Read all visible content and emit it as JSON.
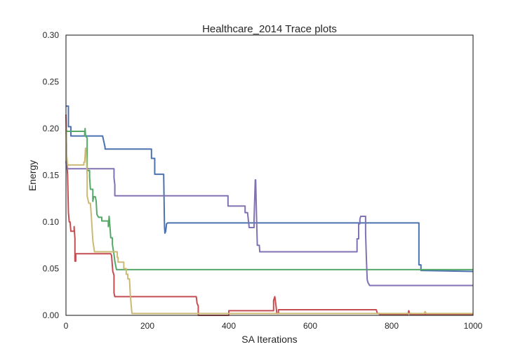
{
  "chart_data": {
    "type": "line",
    "title": "Healthcare_2014 Trace plots",
    "xlabel": "SA Iterations",
    "ylabel": "Energy",
    "xlim": [
      0,
      1000
    ],
    "ylim": [
      0,
      0.3
    ],
    "xticks": [
      "0",
      "200",
      "400",
      "600",
      "800",
      "1000"
    ],
    "xtick_values": [
      0,
      200,
      400,
      600,
      800,
      1000
    ],
    "yticks": [
      "0.00",
      "0.05",
      "0.10",
      "0.15",
      "0.20",
      "0.25",
      "0.30"
    ],
    "ytick_values": [
      0,
      0.05,
      0.1,
      0.15,
      0.2,
      0.25,
      0.3
    ],
    "grid": false,
    "legend": "none",
    "series": [
      {
        "color": "#4c72b0",
        "points": [
          [
            0,
            0.224
          ],
          [
            6,
            0.224
          ],
          [
            6,
            0.202
          ],
          [
            12,
            0.202
          ],
          [
            12,
            0.192
          ],
          [
            90,
            0.192
          ],
          [
            93,
            0.186
          ],
          [
            96,
            0.18
          ],
          [
            96,
            0.178
          ],
          [
            210,
            0.178
          ],
          [
            210,
            0.168
          ],
          [
            218,
            0.168
          ],
          [
            218,
            0.151
          ],
          [
            240,
            0.151
          ],
          [
            242,
            0.095
          ],
          [
            243,
            0.088
          ],
          [
            245,
            0.09
          ],
          [
            247,
            0.098
          ],
          [
            250,
            0.099
          ],
          [
            867,
            0.099
          ],
          [
            867,
            0.054
          ],
          [
            872,
            0.054
          ],
          [
            872,
            0.048
          ],
          [
            1000,
            0.047
          ]
        ]
      },
      {
        "color": "#55a868",
        "points": [
          [
            0,
            0.2
          ],
          [
            2,
            0.197
          ],
          [
            46,
            0.197
          ],
          [
            46,
            0.192
          ],
          [
            47,
            0.2
          ],
          [
            48,
            0.192
          ],
          [
            52,
            0.19
          ],
          [
            52,
            0.155
          ],
          [
            58,
            0.155
          ],
          [
            58,
            0.148
          ],
          [
            60,
            0.135
          ],
          [
            66,
            0.135
          ],
          [
            66,
            0.122
          ],
          [
            68,
            0.127
          ],
          [
            72,
            0.127
          ],
          [
            74,
            0.123
          ],
          [
            76,
            0.108
          ],
          [
            80,
            0.105
          ],
          [
            88,
            0.105
          ],
          [
            88,
            0.101
          ],
          [
            104,
            0.101
          ],
          [
            104,
            0.095
          ],
          [
            106,
            0.106
          ],
          [
            108,
            0.095
          ],
          [
            110,
            0.083
          ],
          [
            114,
            0.083
          ],
          [
            114,
            0.076
          ],
          [
            118,
            0.065
          ],
          [
            120,
            0.058
          ],
          [
            124,
            0.049
          ],
          [
            128,
            0.049
          ],
          [
            1000,
            0.049
          ]
        ]
      },
      {
        "color": "#c44e52",
        "points": [
          [
            0,
            0.215
          ],
          [
            2,
            0.165
          ],
          [
            4,
            0.15
          ],
          [
            6,
            0.11
          ],
          [
            8,
            0.1
          ],
          [
            10,
            0.1
          ],
          [
            12,
            0.09
          ],
          [
            20,
            0.09
          ],
          [
            20,
            0.095
          ],
          [
            22,
            0.082
          ],
          [
            22,
            0.058
          ],
          [
            24,
            0.058
          ],
          [
            24,
            0.066
          ],
          [
            110,
            0.066
          ],
          [
            112,
            0.064
          ],
          [
            115,
            0.047
          ],
          [
            118,
            0.043
          ],
          [
            118,
            0.024
          ],
          [
            120,
            0.02
          ],
          [
            122,
            0.02
          ],
          [
            320,
            0.02
          ],
          [
            322,
            0.013
          ],
          [
            325,
            0.01
          ],
          [
            325,
            0.0
          ],
          [
            400,
            0.0
          ],
          [
            400,
            0.005
          ],
          [
            510,
            0.005
          ],
          [
            510,
            0.016
          ],
          [
            513,
            0.02
          ],
          [
            516,
            0.01
          ],
          [
            518,
            0.002
          ],
          [
            522,
            0.002
          ],
          [
            522,
            0.006
          ],
          [
            525,
            0.006
          ],
          [
            762,
            0.006
          ],
          [
            763,
            0.005
          ],
          [
            765,
            0.002
          ],
          [
            770,
            0.002
          ],
          [
            770,
            0.001
          ],
          [
            840,
            0.001
          ],
          [
            842,
            0.005
          ],
          [
            845,
            0.001
          ],
          [
            1000,
            0.001
          ]
        ]
      },
      {
        "color": "#8172b2",
        "points": [
          [
            0,
            0.165
          ],
          [
            2,
            0.157
          ],
          [
            4,
            0.157
          ],
          [
            118,
            0.157
          ],
          [
            118,
            0.147
          ],
          [
            120,
            0.14
          ],
          [
            120,
            0.128
          ],
          [
            398,
            0.128
          ],
          [
            398,
            0.117
          ],
          [
            440,
            0.117
          ],
          [
            440,
            0.11
          ],
          [
            446,
            0.11
          ],
          [
            448,
            0.102
          ],
          [
            450,
            0.094
          ],
          [
            455,
            0.094
          ],
          [
            462,
            0.094
          ],
          [
            462,
            0.102
          ],
          [
            465,
            0.145
          ],
          [
            466,
            0.145
          ],
          [
            468,
            0.107
          ],
          [
            470,
            0.075
          ],
          [
            475,
            0.075
          ],
          [
            476,
            0.068
          ],
          [
            715,
            0.068
          ],
          [
            715,
            0.082
          ],
          [
            719,
            0.082
          ],
          [
            719,
            0.098
          ],
          [
            722,
            0.098
          ],
          [
            722,
            0.103
          ],
          [
            724,
            0.106
          ],
          [
            736,
            0.106
          ],
          [
            736,
            0.088
          ],
          [
            738,
            0.06
          ],
          [
            740,
            0.038
          ],
          [
            742,
            0.035
          ],
          [
            746,
            0.032
          ],
          [
            1000,
            0.032
          ]
        ]
      },
      {
        "color": "#ccb974",
        "points": [
          [
            0,
            0.2
          ],
          [
            2,
            0.17
          ],
          [
            4,
            0.161
          ],
          [
            44,
            0.161
          ],
          [
            44,
            0.164
          ],
          [
            46,
            0.164
          ],
          [
            48,
            0.179
          ],
          [
            50,
            0.172
          ],
          [
            52,
            0.15
          ],
          [
            52,
            0.128
          ],
          [
            56,
            0.12
          ],
          [
            60,
            0.12
          ],
          [
            62,
            0.108
          ],
          [
            66,
            0.08
          ],
          [
            70,
            0.068
          ],
          [
            126,
            0.068
          ],
          [
            126,
            0.062
          ],
          [
            128,
            0.062
          ],
          [
            128,
            0.057
          ],
          [
            142,
            0.057
          ],
          [
            142,
            0.05
          ],
          [
            148,
            0.05
          ],
          [
            148,
            0.044
          ],
          [
            152,
            0.044
          ],
          [
            152,
            0.039
          ],
          [
            156,
            0.039
          ],
          [
            158,
            0.022
          ],
          [
            162,
            0.002
          ],
          [
            162,
            0.002
          ],
          [
            880,
            0.002
          ],
          [
            882,
            0.004
          ],
          [
            885,
            0.002
          ],
          [
            1000,
            0.002
          ]
        ]
      }
    ]
  }
}
